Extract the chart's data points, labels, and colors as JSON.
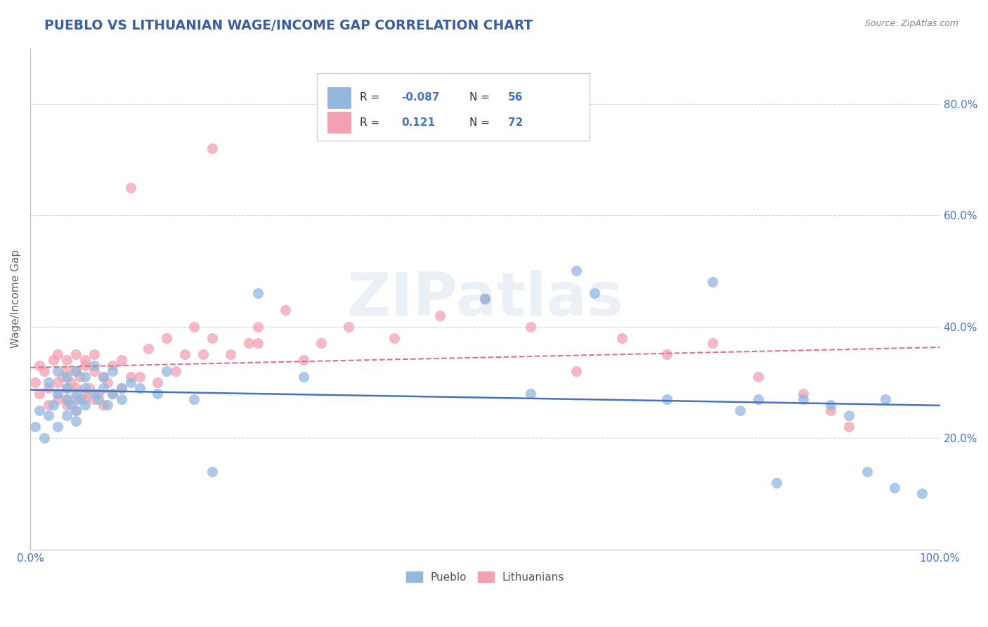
{
  "title": "PUEBLO VS LITHUANIAN WAGE/INCOME GAP CORRELATION CHART",
  "source": "Source: ZipAtlas.com",
  "ylabel": "Wage/Income Gap",
  "legend1_R": "-0.087",
  "legend1_N": "56",
  "legend2_R": "0.121",
  "legend2_N": "72",
  "pueblo_color": "#92b8e0",
  "lithuanian_color": "#f4a0b0",
  "pueblo_line_color": "#4472c4",
  "lithuanian_line_color": "#e07090",
  "title_color": "#3a5fa0",
  "axis_label_color": "#4472c4",
  "background_color": "#ffffff",
  "grid_color": "#cccccc",
  "xlim": [
    0.0,
    1.0
  ],
  "ylim": [
    0.0,
    0.9
  ],
  "yticks": [
    0.2,
    0.4,
    0.6,
    0.8
  ],
  "ytick_labels": [
    "20.0%",
    "40.0%",
    "60.0%",
    "80.0%"
  ],
  "pueblo_scatter_x": [
    0.005,
    0.01,
    0.015,
    0.02,
    0.02,
    0.025,
    0.03,
    0.03,
    0.03,
    0.04,
    0.04,
    0.04,
    0.04,
    0.045,
    0.05,
    0.05,
    0.05,
    0.05,
    0.055,
    0.06,
    0.06,
    0.06,
    0.07,
    0.07,
    0.075,
    0.08,
    0.08,
    0.085,
    0.09,
    0.09,
    0.1,
    0.1,
    0.11,
    0.12,
    0.14,
    0.15,
    0.18,
    0.2,
    0.25,
    0.3,
    0.5,
    0.55,
    0.6,
    0.62,
    0.7,
    0.75,
    0.78,
    0.8,
    0.82,
    0.85,
    0.88,
    0.9,
    0.92,
    0.94,
    0.95,
    0.98
  ],
  "pueblo_scatter_y": [
    0.22,
    0.25,
    0.2,
    0.24,
    0.3,
    0.26,
    0.28,
    0.32,
    0.22,
    0.27,
    0.29,
    0.31,
    0.24,
    0.26,
    0.28,
    0.25,
    0.32,
    0.23,
    0.27,
    0.29,
    0.31,
    0.26,
    0.28,
    0.33,
    0.27,
    0.29,
    0.31,
    0.26,
    0.28,
    0.32,
    0.29,
    0.27,
    0.3,
    0.29,
    0.28,
    0.32,
    0.27,
    0.14,
    0.46,
    0.31,
    0.45,
    0.28,
    0.5,
    0.46,
    0.27,
    0.48,
    0.25,
    0.27,
    0.12,
    0.27,
    0.26,
    0.24,
    0.14,
    0.27,
    0.11,
    0.1
  ],
  "lithuanian_scatter_x": [
    0.005,
    0.01,
    0.01,
    0.015,
    0.02,
    0.02,
    0.025,
    0.03,
    0.03,
    0.03,
    0.03,
    0.035,
    0.04,
    0.04,
    0.04,
    0.04,
    0.04,
    0.045,
    0.05,
    0.05,
    0.05,
    0.05,
    0.05,
    0.055,
    0.06,
    0.06,
    0.06,
    0.06,
    0.065,
    0.07,
    0.07,
    0.07,
    0.075,
    0.08,
    0.08,
    0.085,
    0.09,
    0.09,
    0.1,
    0.1,
    0.11,
    0.11,
    0.12,
    0.13,
    0.14,
    0.15,
    0.16,
    0.17,
    0.18,
    0.19,
    0.2,
    0.2,
    0.22,
    0.24,
    0.25,
    0.25,
    0.28,
    0.3,
    0.32,
    0.35,
    0.4,
    0.45,
    0.5,
    0.55,
    0.6,
    0.65,
    0.7,
    0.75,
    0.8,
    0.85,
    0.88,
    0.9
  ],
  "lithuanian_scatter_y": [
    0.3,
    0.28,
    0.33,
    0.32,
    0.29,
    0.26,
    0.34,
    0.3,
    0.28,
    0.35,
    0.27,
    0.31,
    0.29,
    0.32,
    0.27,
    0.34,
    0.26,
    0.3,
    0.32,
    0.27,
    0.35,
    0.29,
    0.25,
    0.31,
    0.28,
    0.34,
    0.27,
    0.33,
    0.29,
    0.32,
    0.27,
    0.35,
    0.28,
    0.31,
    0.26,
    0.3,
    0.33,
    0.28,
    0.34,
    0.29,
    0.31,
    0.65,
    0.31,
    0.36,
    0.3,
    0.38,
    0.32,
    0.35,
    0.4,
    0.35,
    0.38,
    0.72,
    0.35,
    0.37,
    0.4,
    0.37,
    0.43,
    0.34,
    0.37,
    0.4,
    0.38,
    0.42,
    0.45,
    0.4,
    0.32,
    0.38,
    0.35,
    0.37,
    0.31,
    0.28,
    0.25,
    0.22
  ]
}
